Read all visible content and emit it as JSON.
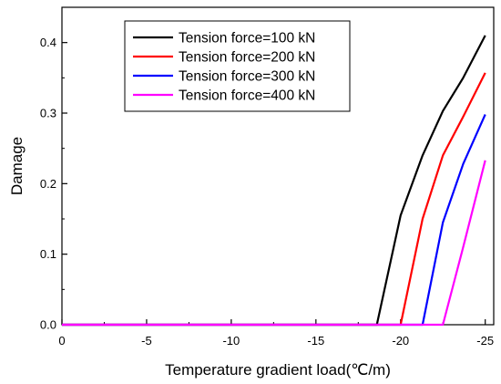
{
  "chart_data": {
    "type": "line",
    "title": "",
    "xlabel": "Temperature gradient load(℃/m)",
    "ylabel": "Damage",
    "xlim": [
      0,
      -25.5
    ],
    "ylim": [
      0,
      0.45
    ],
    "x_ticks": [
      0,
      -5,
      -10,
      -15,
      -20,
      -25
    ],
    "x_tick_labels": [
      "0",
      "-5",
      "-10",
      "-15",
      "-20",
      "-25"
    ],
    "y_ticks": [
      0.0,
      0.1,
      0.2,
      0.3,
      0.4
    ],
    "y_tick_labels": [
      "0.0",
      "0.1",
      "0.2",
      "0.3",
      "0.4"
    ],
    "grid": false,
    "legend_position": "top-center",
    "series": [
      {
        "name": "Tension force=100 kN",
        "color": "#000000",
        "points": [
          [
            0,
            0
          ],
          [
            -18.6,
            0
          ],
          [
            -20.0,
            0.155
          ],
          [
            -21.3,
            0.24
          ],
          [
            -22.5,
            0.303
          ],
          [
            -23.7,
            0.35
          ],
          [
            -25.0,
            0.41
          ]
        ]
      },
      {
        "name": "Tension force=200 kN",
        "color": "#ff0000",
        "points": [
          [
            0,
            0
          ],
          [
            -20.0,
            0
          ],
          [
            -21.3,
            0.15
          ],
          [
            -22.5,
            0.24
          ],
          [
            -23.7,
            0.295
          ],
          [
            -25.0,
            0.357
          ]
        ]
      },
      {
        "name": "Tension force=300 kN",
        "color": "#0000ff",
        "points": [
          [
            0,
            0
          ],
          [
            -21.3,
            0
          ],
          [
            -22.5,
            0.145
          ],
          [
            -23.7,
            0.228
          ],
          [
            -25.0,
            0.298
          ]
        ]
      },
      {
        "name": "Tension force=400 kN",
        "color": "#ff00ff",
        "points": [
          [
            0,
            0
          ],
          [
            -22.5,
            0
          ],
          [
            -23.7,
            0.11
          ],
          [
            -25.0,
            0.233
          ]
        ]
      }
    ]
  }
}
